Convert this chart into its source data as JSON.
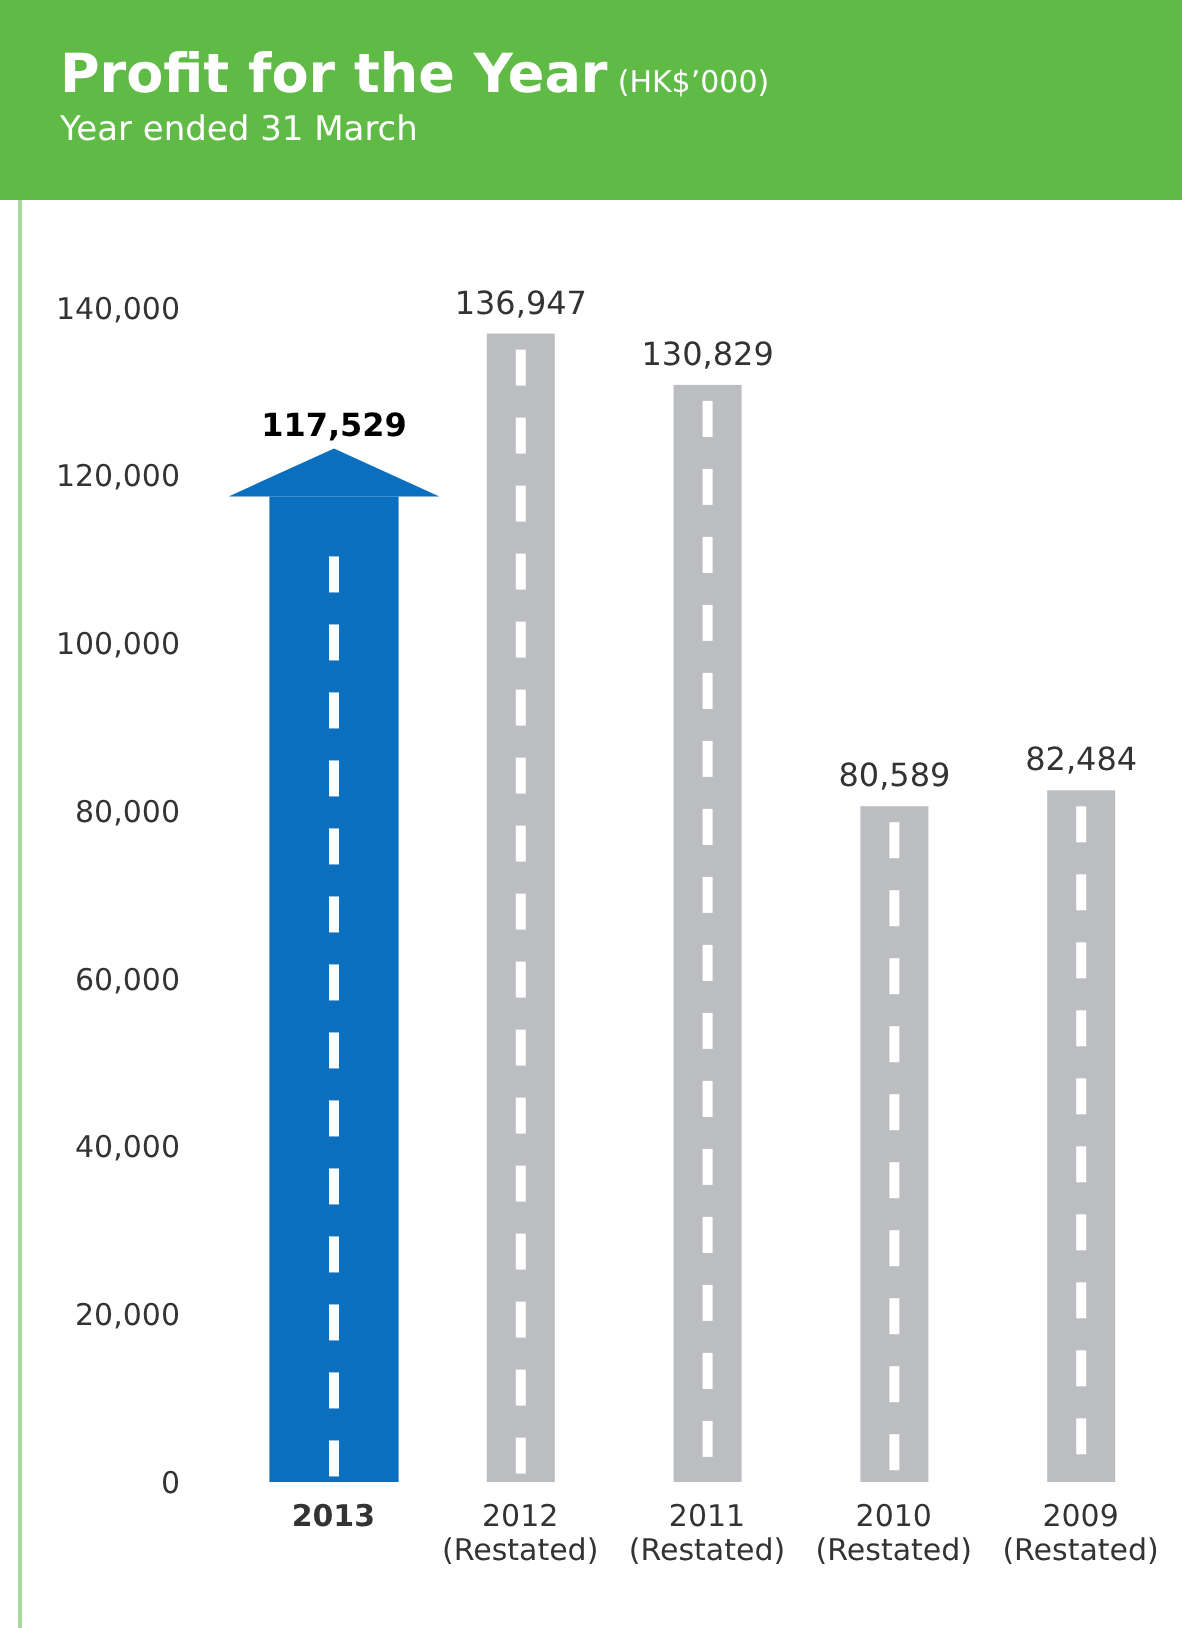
{
  "chart_data": {
    "type": "bar",
    "title": "Profit for the Year",
    "annotations": [
      "(HK$’000)"
    ],
    "subtitle": "Year ended 31 March",
    "categories": [
      "2013",
      "2012\n(Restated)",
      "2011\n(Restated)",
      "2010\n(Restated)",
      "2009\n(Restated)"
    ],
    "values": [
      117529,
      136947,
      130829,
      80589,
      82484
    ],
    "colors": [
      "#0a6fbf",
      "#bcbdc0",
      "#bcbdc0",
      "#bcbdc0",
      "#bcbdc0"
    ],
    "value_labels": [
      "117,529",
      "136,947",
      "130,829",
      "80,589",
      "82,484"
    ],
    "ylim": [
      0,
      140000
    ],
    "yticks": [
      0,
      {
        "value": 20000,
        "label": "20,000"
      },
      {
        "value": 40000,
        "label": "40,000"
      },
      {
        "value": 60000,
        "label": "60,000"
      },
      {
        "value": 80000,
        "label": "80,000"
      },
      {
        "value": 100000,
        "label": "100,000"
      },
      {
        "value": 120000,
        "label": "120,000"
      },
      {
        "value": 140000,
        "label": "140,000"
      }
    ],
    "grid": false
  }
}
